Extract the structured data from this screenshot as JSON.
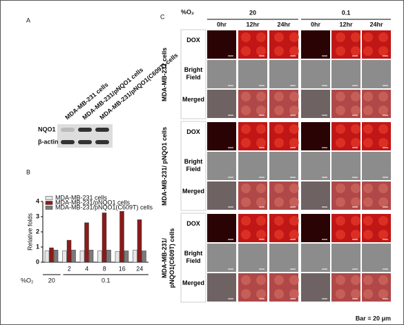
{
  "panel_a": {
    "letter": "A",
    "lanes": [
      "MDA-MB-231 cells",
      "MDA-MB-231/pNQO1 cells",
      "MDA-MB-231/pNQO1(C609T) cells"
    ],
    "blots": [
      "NQO1",
      "β-actin"
    ]
  },
  "chart_data": {
    "type": "bar",
    "letter": "B",
    "y_label": "Relative folds",
    "x_label": "%O₂",
    "categories": [
      null,
      "2",
      "4",
      "8",
      "16",
      "24"
    ],
    "group_labels": [
      "20",
      "0.1"
    ],
    "series": [
      {
        "name": "MDA-MB-231 cells",
        "color": "#e6e6e6",
        "values": [
          0.75,
          0.75,
          0.75,
          0.75,
          0.7,
          0.8
        ]
      },
      {
        "name": "MDA-MB-231/pNQO1 cells",
        "color": "#8b1a1a",
        "values": [
          0.95,
          1.45,
          2.6,
          3.25,
          3.35,
          2.8
        ]
      },
      {
        "name": "MDA-MB-231/pNQO1(C609T) cells",
        "color": "#7a7a7a",
        "values": [
          0.8,
          0.8,
          0.8,
          0.8,
          0.75,
          0.75
        ]
      }
    ],
    "ylim": [
      0,
      4
    ],
    "yticks": [
      0,
      1,
      2,
      3,
      4
    ]
  },
  "panel_c": {
    "letter": "C",
    "o2_label": "%O₂",
    "conditions": [
      "20",
      "0.1"
    ],
    "times": [
      "0hr",
      "12hr",
      "24hr",
      "0hr",
      "12hr",
      "24hr"
    ],
    "cell_lines": [
      "MDA-MB-231 cells",
      "MDA-MB-231/ pNQO1 cells",
      "MDA-MB-231/ pNQO1(C609T) cells"
    ],
    "channels": [
      "DOX",
      "Bright Field",
      "Merged"
    ],
    "scale_note": "Bar = 20 μm"
  }
}
